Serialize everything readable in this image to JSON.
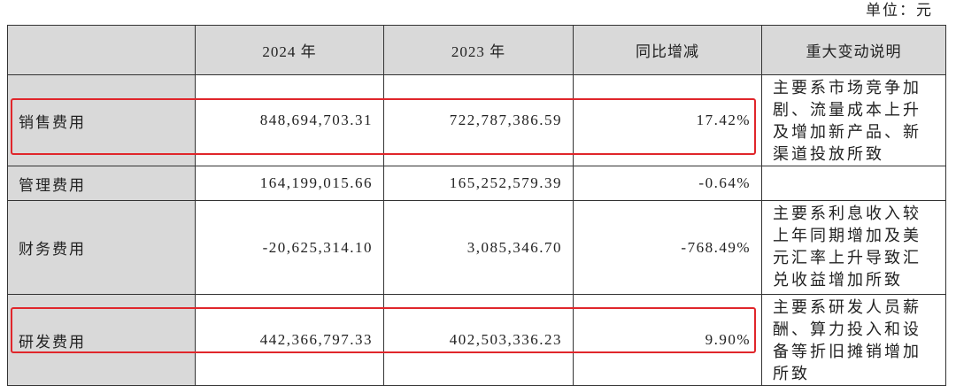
{
  "unit": "单位：元",
  "table": {
    "headers": [
      null,
      "2024 年",
      "2023 年",
      "同比增减",
      "重大变动说明"
    ],
    "rows": [
      [
        "销售费用",
        "848,694,703.31",
        "722,787,386.59",
        "17.42%",
        "主要系市场竞争加剧、流量成本上升及增加新产品、新渠道投放所致"
      ],
      [
        "管理费用",
        "164,199,015.66",
        "165,252,579.39",
        "-0.64%",
        null
      ],
      [
        "财务费用",
        "-20,625,314.10",
        "3,085,346.70",
        "-768.49%",
        "主要系利息收入较上年同期增加及美元汇率上升导致汇兑收益增加所致"
      ],
      [
        "研发费用",
        "442,366,797.33",
        "402,503,336.23",
        "9.90%",
        "主要系研发人员薪酬、算力投入和设备等折旧摊销增加所致"
      ]
    ]
  }
}
